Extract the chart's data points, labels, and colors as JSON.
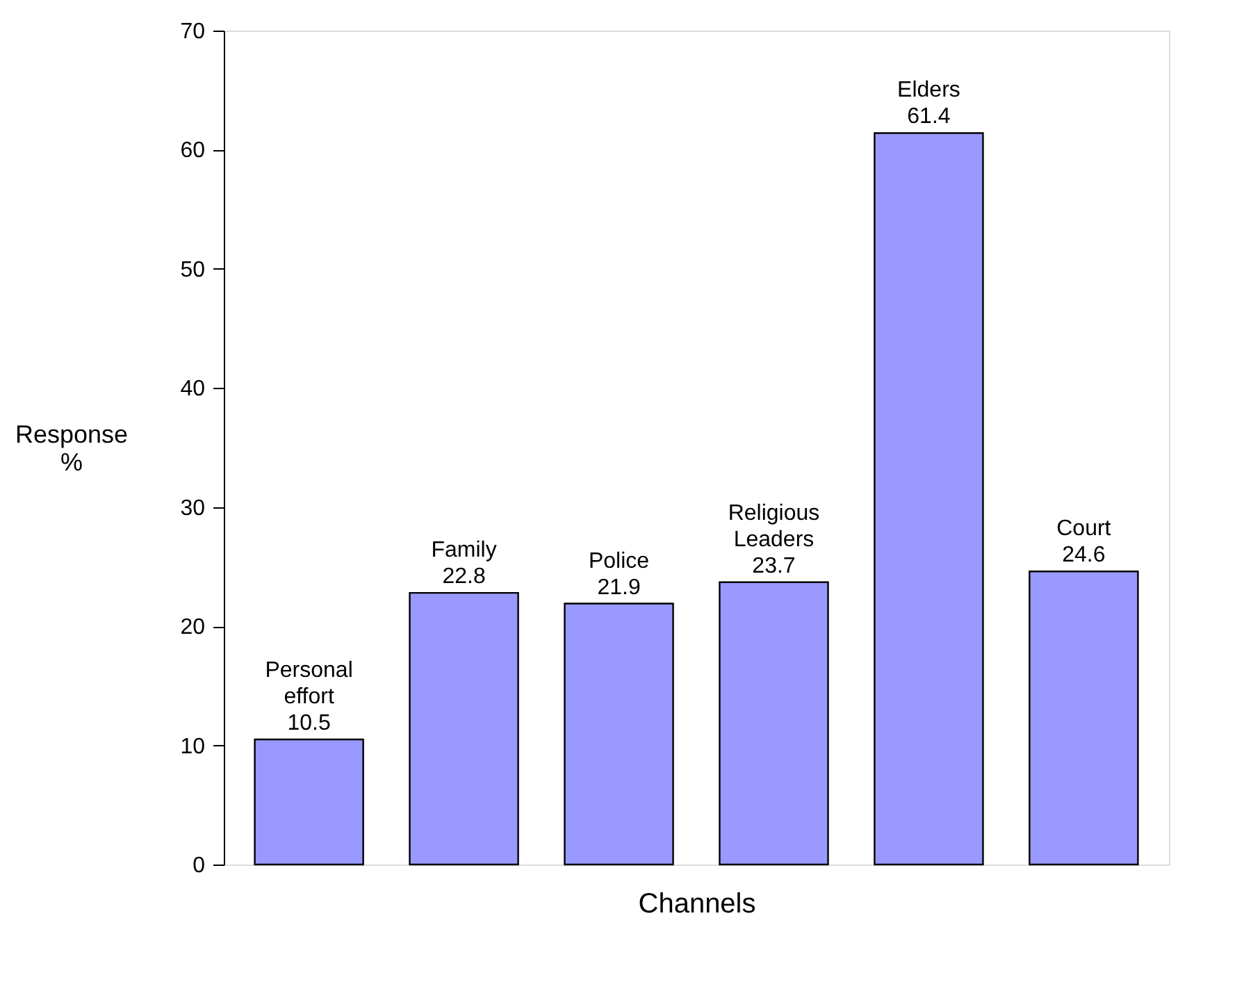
{
  "chart_data": {
    "type": "bar",
    "categories": [
      "Personal effort",
      "Family",
      "Police",
      "Religious Leaders",
      "Elders",
      "Court"
    ],
    "values": [
      10.5,
      22.8,
      21.9,
      23.7,
      61.4,
      24.6
    ],
    "color": "#9999ff",
    "xlabel": "Channels",
    "ylabel": "Response %",
    "ylim": [
      0,
      70
    ],
    "yticks": [
      0,
      10,
      20,
      30,
      40,
      50,
      60,
      70
    ],
    "data_labels": true,
    "tick_labels": "y",
    "grid": false
  }
}
